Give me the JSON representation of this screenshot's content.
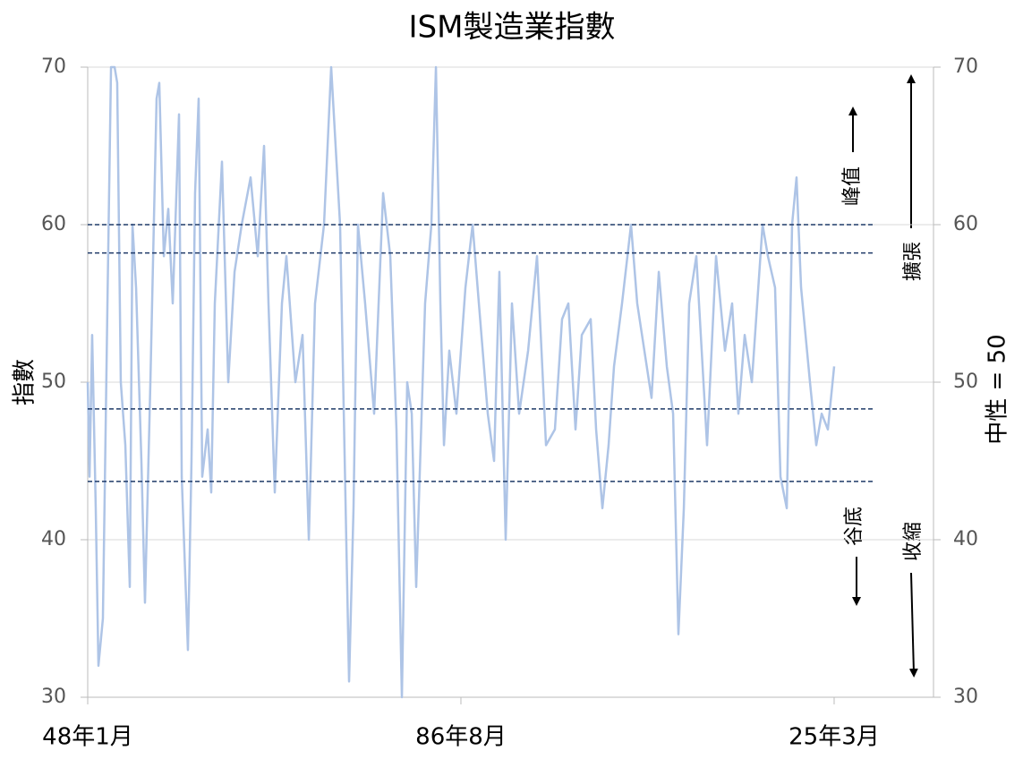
{
  "chart_data": {
    "type": "line",
    "title": "ISM製造業指數",
    "y_label": "指數",
    "y2_label": "中性 = 50",
    "x": [
      1948.0,
      1948.19,
      1948.46,
      1948.83,
      1949.11,
      1949.57,
      1950.04,
      1950.41,
      1950.78,
      1951.05,
      1951.42,
      1951.89,
      1952.35,
      1952.63,
      1953.0,
      1953.55,
      1953.92,
      1954.48,
      1955.12,
      1955.4,
      1955.87,
      1956.33,
      1956.79,
      1957.44,
      1957.72,
      1958.36,
      1958.73,
      1959.1,
      1959.47,
      1959.84,
      1960.4,
      1960.77,
      1961.14,
      1961.88,
      1962.53,
      1963.18,
      1963.92,
      1964.84,
      1965.58,
      1966.23,
      1966.69,
      1967.34,
      1968.08,
      1968.54,
      1969.47,
      1970.21,
      1970.86,
      1971.5,
      1972.43,
      1973.17,
      1973.72,
      1974.09,
      1975.02,
      1975.48,
      1975.94,
      1976.68,
      1977.61,
      1978.54,
      1979.28,
      1979.92,
      1980.48,
      1981.03,
      1981.5,
      1981.96,
      1982.88,
      1983.53,
      1984.0,
      1984.46,
      1984.83,
      1985.38,
      1986.12,
      1987.05,
      1987.79,
      1988.44,
      1989.36,
      1990.01,
      1990.56,
      1991.21,
      1991.86,
      1992.6,
      1993.53,
      1994.45,
      1995.38,
      1996.3,
      1997.04,
      1997.69,
      1998.43,
      1999.08,
      2000.0,
      2000.56,
      2001.21,
      2001.85,
      2002.41,
      2003.24,
      2004.17,
      2004.81,
      2005.55,
      2006.29,
      2007.04,
      2007.87,
      2008.52,
      2009.07,
      2009.63,
      2010.18,
      2010.92,
      2012.03,
      2012.96,
      2013.88,
      2014.62,
      2015.27,
      2015.92,
      2016.66,
      2017.77,
      2018.32,
      2019.06,
      2019.62,
      2020.27,
      2020.82,
      2021.28,
      2021.75,
      2022.67,
      2023.32,
      2023.88,
      2024.52,
      2025.17
    ],
    "series": [
      {
        "name": "ISM製造業指數",
        "color": "#aec4e6",
        "values": [
          50,
          44,
          53,
          42,
          32,
          35,
          55,
          70,
          70,
          69,
          50,
          46,
          37,
          60,
          56,
          45,
          36,
          50,
          68,
          69,
          58,
          61,
          55,
          67,
          44,
          33,
          45,
          62,
          68,
          44,
          47,
          43,
          55,
          64,
          50,
          57,
          60,
          63,
          58,
          65,
          55,
          43,
          55,
          58,
          50,
          53,
          40,
          55,
          60,
          70,
          64,
          60,
          31,
          42,
          60,
          55,
          48,
          62,
          58,
          47,
          30,
          50,
          48,
          37,
          55,
          60,
          70,
          55,
          46,
          52,
          48,
          56,
          60,
          55,
          48,
          45,
          57,
          40,
          55,
          48,
          52,
          58,
          46,
          47,
          54,
          55,
          47,
          53,
          54,
          47,
          42,
          46,
          51,
          55,
          60,
          55,
          52,
          49,
          57,
          51,
          48,
          34,
          42,
          55,
          58,
          46,
          58,
          52,
          55,
          48,
          53,
          50,
          60,
          58,
          56,
          44,
          42,
          60,
          63,
          56,
          50,
          46,
          48,
          47,
          51
        ]
      }
    ],
    "hlines": [
      60,
      58.2,
      48.3,
      43.7
    ],
    "hline_color": "#1f3a68",
    "hline_end": 2029.4,
    "xlim": [
      1948,
      2035.44
    ],
    "xticks": [
      {
        "value": 1948,
        "label": "48年1月"
      },
      {
        "value": 1986.583,
        "label": "86年8月"
      },
      {
        "value": 2025.167,
        "label": "25年3月"
      }
    ],
    "ylim": [
      30,
      70
    ],
    "yticks": [
      30,
      40,
      50,
      60,
      70
    ],
    "y2lim": [
      30,
      70
    ],
    "y2ticks": [
      30,
      40,
      50,
      60,
      70
    ],
    "grid": true,
    "annotations": [
      "峰值",
      "谷底",
      "擴張",
      "收縮"
    ]
  }
}
